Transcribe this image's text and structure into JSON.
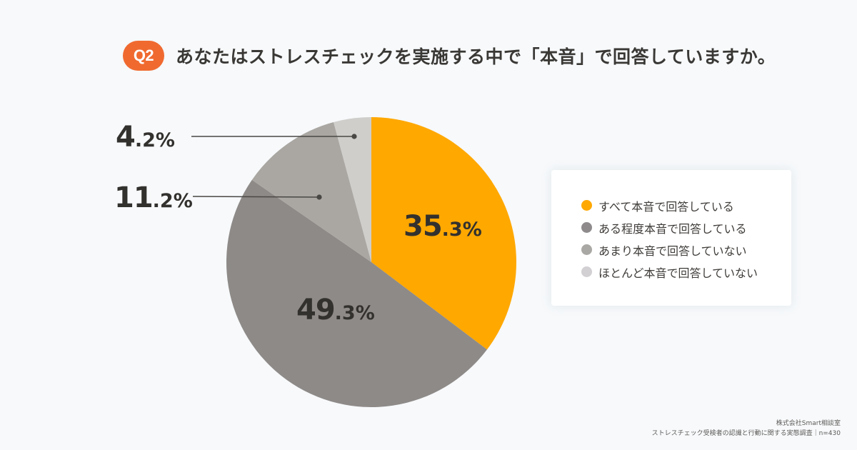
{
  "header": {
    "badge": "Q2",
    "title": "あなたはストレスチェックを実施する中で「本音」で回答していますか。"
  },
  "colors": {
    "badge": "#f06a30",
    "background": "#f7f9fb",
    "slice_all": "#ffa800",
    "slice_somewhat": "#8e8a88",
    "slice_notmuch": "#aaa7a2",
    "slice_hardly": "#cfcecb"
  },
  "labels": {
    "all": {
      "int": "35",
      "dec": ".3%"
    },
    "somewhat": {
      "int": "49",
      "dec": ".3%"
    },
    "notmuch": {
      "int": "11",
      "dec": ".2%"
    },
    "hardly": {
      "int": "4",
      "dec": ".2%"
    }
  },
  "legend": {
    "items": [
      {
        "label": "すべて本音で回答している",
        "color": "#ffa800"
      },
      {
        "label": "ある程度本音で回答している",
        "color": "#8e8a8b"
      },
      {
        "label": "あまり本音で回答していない",
        "color": "#aaa8a4"
      },
      {
        "label": "ほとんど本音で回答していない",
        "color": "#d2d0d2"
      }
    ]
  },
  "footer": {
    "company": "株式会社Smart相談室",
    "source": "ストレスチェック受検者の認識と行動に関する実態調査｜n=430"
  },
  "chart_data": {
    "type": "pie",
    "title": "あなたはストレスチェックを実施する中で「本音」で回答していますか。",
    "categories": [
      "すべて本音で回答している",
      "ある程度本音で回答している",
      "あまり本音で回答していない",
      "ほとんど本音で回答していない"
    ],
    "values": [
      35.3,
      49.3,
      11.2,
      4.2
    ],
    "unit": "%",
    "colors": [
      "#ffa800",
      "#8e8a88",
      "#aaa7a2",
      "#cfcecb"
    ],
    "start_angle": "12 o'clock, clockwise",
    "legend_position": "right",
    "n": 430
  }
}
